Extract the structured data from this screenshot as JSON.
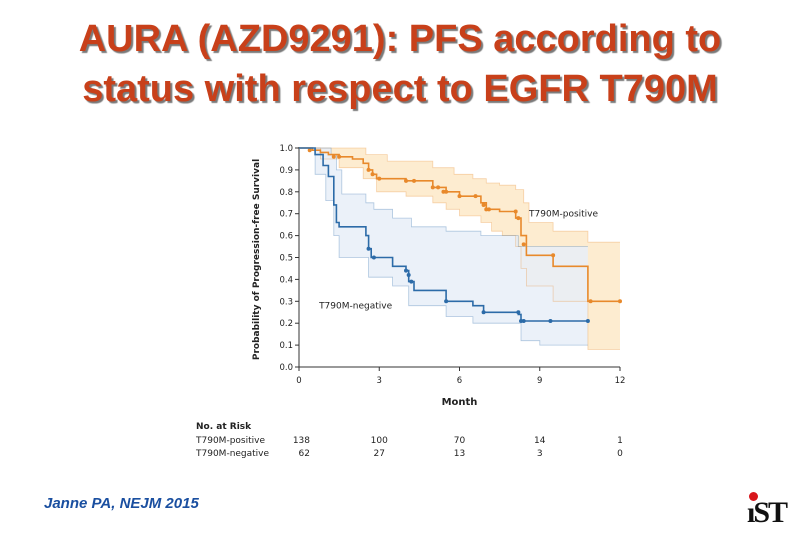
{
  "slide": {
    "title_line1": "AURA (AZD9291): PFS according to",
    "title_line2": "status with respect to EGFR T790M",
    "citation": "Janne PA, NEJM 2015",
    "logo_text": "IST",
    "title_color": "#c8401a",
    "citation_color": "#1a4fa0"
  },
  "chart_data": {
    "type": "line",
    "subtype": "kaplan-meier step curve with confidence bands",
    "ylabel": "Probability of Progression-free Survival",
    "xlabel": "Month",
    "xlim": [
      0,
      12
    ],
    "ylim": [
      0,
      1.0
    ],
    "x_ticks": [
      0,
      3,
      6,
      9,
      12
    ],
    "y_ticks": [
      0.0,
      0.1,
      0.2,
      0.3,
      0.4,
      0.5,
      0.6,
      0.7,
      0.8,
      0.9,
      1.0
    ],
    "x_tick_labels": [
      "0",
      "3",
      "6",
      "9",
      "12"
    ],
    "y_tick_labels": [
      "0.0",
      "0.1",
      "0.2",
      "0.3",
      "0.4",
      "0.5",
      "0.6",
      "0.7",
      "0.8",
      "0.9",
      "1.0"
    ],
    "grid": false,
    "series": [
      {
        "name": "T790M-positive",
        "color": "#e8892b",
        "band_color": "#fde9c8",
        "steps": [
          [
            0,
            1.0
          ],
          [
            0.5,
            0.99
          ],
          [
            0.8,
            0.98
          ],
          [
            1.1,
            0.97
          ],
          [
            1.5,
            0.96
          ],
          [
            2.0,
            0.95
          ],
          [
            2.4,
            0.93
          ],
          [
            2.6,
            0.9
          ],
          [
            2.75,
            0.88
          ],
          [
            2.9,
            0.86
          ],
          [
            4.0,
            0.85
          ],
          [
            5.0,
            0.82
          ],
          [
            5.5,
            0.8
          ],
          [
            6.0,
            0.78
          ],
          [
            6.8,
            0.75
          ],
          [
            7.0,
            0.72
          ],
          [
            7.5,
            0.71
          ],
          [
            8.1,
            0.68
          ],
          [
            8.3,
            0.6
          ],
          [
            8.5,
            0.51
          ],
          [
            9.5,
            0.46
          ],
          [
            10.8,
            0.3
          ],
          [
            12,
            0.3
          ]
        ],
        "censored": [
          [
            0.4,
            0.99
          ],
          [
            1.3,
            0.96
          ],
          [
            1.5,
            0.96
          ],
          [
            2.6,
            0.9
          ],
          [
            2.75,
            0.88
          ],
          [
            3.0,
            0.86
          ],
          [
            4.0,
            0.85
          ],
          [
            4.3,
            0.85
          ],
          [
            5.0,
            0.82
          ],
          [
            5.2,
            0.82
          ],
          [
            5.4,
            0.8
          ],
          [
            5.5,
            0.8
          ],
          [
            6.0,
            0.78
          ],
          [
            6.6,
            0.78
          ],
          [
            6.9,
            0.74
          ],
          [
            7.0,
            0.72
          ],
          [
            7.1,
            0.72
          ],
          [
            8.1,
            0.71
          ],
          [
            8.2,
            0.68
          ],
          [
            8.4,
            0.56
          ],
          [
            9.5,
            0.51
          ],
          [
            10.9,
            0.3
          ],
          [
            12,
            0.3
          ]
        ],
        "ci_upper": [
          [
            0,
            1.0
          ],
          [
            1.0,
            1.0
          ],
          [
            2.5,
            0.97
          ],
          [
            3.3,
            0.94
          ],
          [
            4.2,
            0.94
          ],
          [
            5.0,
            0.91
          ],
          [
            5.8,
            0.88
          ],
          [
            6.5,
            0.86
          ],
          [
            7.0,
            0.84
          ],
          [
            7.5,
            0.83
          ],
          [
            8.1,
            0.81
          ],
          [
            8.4,
            0.75
          ],
          [
            8.6,
            0.66
          ],
          [
            9.5,
            0.62
          ],
          [
            10.8,
            0.57
          ],
          [
            12,
            0.57
          ]
        ],
        "ci_lower": [
          [
            0,
            1.0
          ],
          [
            0.8,
            0.95
          ],
          [
            1.5,
            0.91
          ],
          [
            2.4,
            0.86
          ],
          [
            2.9,
            0.8
          ],
          [
            4.0,
            0.78
          ],
          [
            5.0,
            0.75
          ],
          [
            5.5,
            0.72
          ],
          [
            6.0,
            0.69
          ],
          [
            6.8,
            0.66
          ],
          [
            7.2,
            0.62
          ],
          [
            7.6,
            0.6
          ],
          [
            8.1,
            0.55
          ],
          [
            8.3,
            0.45
          ],
          [
            8.5,
            0.37
          ],
          [
            9.5,
            0.3
          ],
          [
            10.8,
            0.08
          ],
          [
            12,
            0.08
          ]
        ]
      },
      {
        "name": "T790M-negative",
        "color": "#2c6ba8",
        "band_color": "#e7eff8",
        "steps": [
          [
            0,
            1.0
          ],
          [
            0.6,
            0.97
          ],
          [
            0.9,
            0.92
          ],
          [
            1.1,
            0.87
          ],
          [
            1.3,
            0.74
          ],
          [
            1.4,
            0.66
          ],
          [
            1.5,
            0.64
          ],
          [
            2.5,
            0.6
          ],
          [
            2.6,
            0.54
          ],
          [
            2.7,
            0.5
          ],
          [
            3.5,
            0.46
          ],
          [
            4.0,
            0.44
          ],
          [
            4.1,
            0.39
          ],
          [
            4.3,
            0.35
          ],
          [
            5.5,
            0.3
          ],
          [
            6.5,
            0.28
          ],
          [
            6.9,
            0.25
          ],
          [
            8.2,
            0.24
          ],
          [
            8.3,
            0.21
          ],
          [
            9.4,
            0.21
          ],
          [
            10.8,
            0.21
          ]
        ],
        "censored": [
          [
            2.6,
            0.54
          ],
          [
            2.8,
            0.5
          ],
          [
            4.0,
            0.44
          ],
          [
            4.1,
            0.42
          ],
          [
            4.2,
            0.39
          ],
          [
            5.5,
            0.3
          ],
          [
            6.9,
            0.25
          ],
          [
            8.2,
            0.25
          ],
          [
            8.3,
            0.21
          ],
          [
            8.4,
            0.21
          ],
          [
            9.4,
            0.21
          ],
          [
            10.8,
            0.21
          ]
        ],
        "ci_upper": [
          [
            0,
            1.0
          ],
          [
            0.8,
            1.0
          ],
          [
            1.2,
            0.97
          ],
          [
            1.4,
            0.9
          ],
          [
            1.6,
            0.79
          ],
          [
            2.5,
            0.75
          ],
          [
            2.8,
            0.72
          ],
          [
            3.5,
            0.68
          ],
          [
            4.2,
            0.64
          ],
          [
            5.5,
            0.62
          ],
          [
            6.8,
            0.6
          ],
          [
            8.2,
            0.55
          ],
          [
            10.8,
            0.55
          ]
        ],
        "ci_lower": [
          [
            0,
            1.0
          ],
          [
            0.6,
            0.88
          ],
          [
            1.0,
            0.76
          ],
          [
            1.3,
            0.6
          ],
          [
            1.5,
            0.5
          ],
          [
            2.6,
            0.41
          ],
          [
            3.5,
            0.37
          ],
          [
            4.1,
            0.28
          ],
          [
            5.5,
            0.23
          ],
          [
            6.5,
            0.2
          ],
          [
            8.3,
            0.12
          ],
          [
            9.0,
            0.1
          ],
          [
            10.8,
            0.1
          ]
        ]
      }
    ],
    "annotations": [
      {
        "text": "T790M-positive",
        "x": 8.6,
        "y": 0.7
      },
      {
        "text": "T790M-negative",
        "x": 0.75,
        "y": 0.28
      }
    ],
    "at_risk": {
      "title": "No. at Risk",
      "rows": [
        {
          "label": "T790M-positive",
          "values": [
            "138",
            "100",
            "70",
            "14",
            "1"
          ]
        },
        {
          "label": "T790M-negative",
          "values": [
            "62",
            "27",
            "13",
            "3",
            "0"
          ]
        }
      ]
    }
  }
}
